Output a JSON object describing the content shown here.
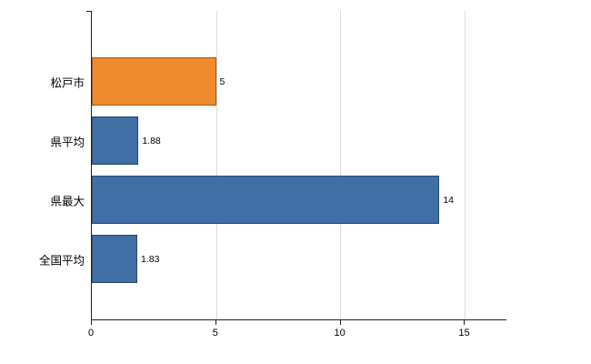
{
  "chart_data": {
    "type": "bar",
    "orientation": "horizontal",
    "title": "",
    "xlabel": "",
    "ylabel": "",
    "categories": [
      "松戸市",
      "県平均",
      "県最大",
      "全国平均"
    ],
    "values": [
      5,
      1.88,
      14,
      1.83
    ],
    "value_labels": [
      "5",
      "1.88",
      "14",
      "1.83"
    ],
    "bar_colors": [
      "#ef8b2e",
      "#3f6fa5",
      "#3f6fa5",
      "#3f6fa5"
    ],
    "xlim": [
      0,
      16.7
    ],
    "x_ticks": [
      0,
      5,
      10,
      15
    ],
    "x_tick_labels": [
      "0",
      "5",
      "10",
      "15"
    ],
    "grid": true,
    "gridline_ticks": [
      5,
      10,
      15
    ],
    "colors": {
      "axis": "#222222",
      "gridline": "#dcdcdc",
      "text": "#000000",
      "highlight_bar": "#ef8b2e",
      "default_bar": "#3f6fa5"
    },
    "legend": null
  }
}
